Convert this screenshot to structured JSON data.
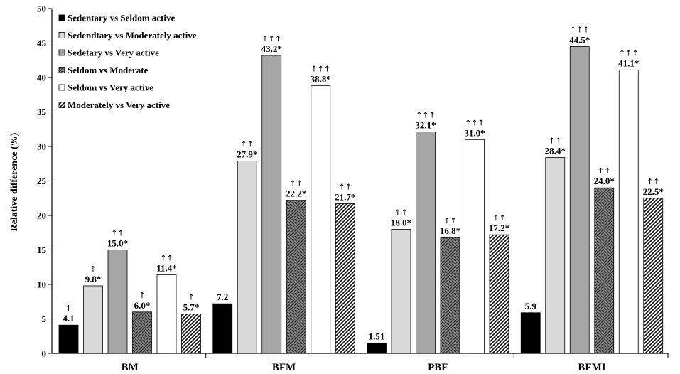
{
  "chart_data": {
    "type": "bar",
    "title": "",
    "xlabel": "",
    "ylabel": "Relative difference (%)",
    "ylim": [
      0,
      50
    ],
    "yticks": [
      0,
      5,
      10,
      15,
      20,
      25,
      30,
      35,
      40,
      45,
      50
    ],
    "categories": [
      "BM",
      "BFM",
      "PBF",
      "BFMI"
    ],
    "legend_position": "top-left",
    "series": [
      {
        "name": "Sedentary vs Seldom active",
        "pattern": "solid-black",
        "values": [
          4.1,
          7.2,
          1.51,
          5.9
        ],
        "labels": [
          "4.1",
          "7.2",
          "1.51",
          "5.9"
        ],
        "arrows": [
          "↑",
          "",
          "",
          ""
        ]
      },
      {
        "name": "Sedendtary vs Moderately active",
        "pattern": "light-gray",
        "values": [
          9.8,
          27.9,
          18.0,
          28.4
        ],
        "labels": [
          "9.8*",
          "27.9*",
          "18.0*",
          "28.4*"
        ],
        "arrows": [
          "↑",
          "↑↑",
          "↑↑",
          "↑↑"
        ]
      },
      {
        "name": "Sedetary vs Very active",
        "pattern": "mid-gray",
        "values": [
          15.0,
          43.2,
          32.1,
          44.5
        ],
        "labels": [
          "15.0*",
          "43.2*",
          "32.1*",
          "44.5*"
        ],
        "arrows": [
          "↑↑",
          "↑↑↑",
          "↑↑↑",
          "↑↑↑"
        ]
      },
      {
        "name": "Seldom vs Moderate",
        "pattern": "dark-crosshatch",
        "values": [
          6.0,
          22.2,
          16.8,
          24.0
        ],
        "labels": [
          "6.0*",
          "22.2*",
          "16.8*",
          "24.0*"
        ],
        "arrows": [
          "↑",
          "↑↑",
          "↑↑",
          "↑↑"
        ]
      },
      {
        "name": "Seldom vs Very active",
        "pattern": "white",
        "values": [
          11.4,
          38.8,
          31.0,
          41.1
        ],
        "labels": [
          "11.4*",
          "38.8*",
          "31.0*",
          "41.1*"
        ],
        "arrows": [
          "↑↑",
          "↑↑↑",
          "↑↑↑",
          "↑↑↑"
        ]
      },
      {
        "name": "Moderately vs Very active",
        "pattern": "diagonal-hatch",
        "values": [
          5.7,
          21.7,
          17.2,
          22.5
        ],
        "labels": [
          "5.7*",
          "21.7*",
          "17.2*",
          "22.5*"
        ],
        "arrows": [
          "↑",
          "↑↑",
          "↑↑",
          "↑↑"
        ]
      }
    ]
  },
  "colors": {
    "axis": "#000000",
    "solid_black": "#000000",
    "light_gray": "#d9d9d9",
    "mid_gray": "#a6a6a6",
    "crosshatch_bg": "#6f6f6f",
    "white": "#ffffff"
  }
}
